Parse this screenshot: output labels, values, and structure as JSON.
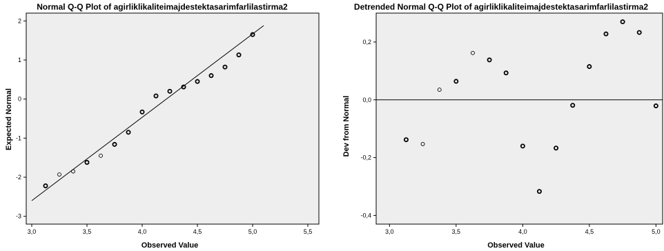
{
  "chart_data": [
    {
      "type": "scatter",
      "title": "Normal Q-Q Plot of agirliklikaliteimajdestektasarimfarlilastirma2",
      "xlabel": "Observed Value",
      "ylabel": "Expected Normal",
      "xlim": [
        2.95,
        5.6
      ],
      "ylim": [
        -3.2,
        2.2
      ],
      "xticks": [
        "3,0",
        "3,5",
        "4,0",
        "4,5",
        "5,0",
        "5,5"
      ],
      "xtick_values": [
        3.0,
        3.5,
        4.0,
        4.5,
        5.0,
        5.5
      ],
      "yticks": [
        "-3",
        "-2",
        "-1",
        "0",
        "1",
        "2"
      ],
      "ytick_values": [
        -3,
        -2,
        -1,
        0,
        1,
        2
      ],
      "reference_line": [
        [
          3.0,
          -2.6
        ],
        [
          5.1,
          1.88
        ]
      ],
      "points": [
        {
          "x": 3.125,
          "y": -2.22,
          "bold": true
        },
        {
          "x": 3.25,
          "y": -1.93,
          "bold": false
        },
        {
          "x": 3.375,
          "y": -1.85,
          "bold": false
        },
        {
          "x": 3.5,
          "y": -1.62,
          "bold": true
        },
        {
          "x": 3.625,
          "y": -1.45,
          "bold": false
        },
        {
          "x": 3.75,
          "y": -1.16,
          "bold": true
        },
        {
          "x": 3.875,
          "y": -0.85,
          "bold": true
        },
        {
          "x": 4.0,
          "y": -0.33,
          "bold": true
        },
        {
          "x": 4.125,
          "y": 0.08,
          "bold": true
        },
        {
          "x": 4.25,
          "y": 0.2,
          "bold": true
        },
        {
          "x": 4.375,
          "y": 0.31,
          "bold": true
        },
        {
          "x": 4.5,
          "y": 0.45,
          "bold": true
        },
        {
          "x": 4.625,
          "y": 0.6,
          "bold": true
        },
        {
          "x": 4.75,
          "y": 0.82,
          "bold": true
        },
        {
          "x": 4.875,
          "y": 1.13,
          "bold": true
        },
        {
          "x": 5.0,
          "y": 1.65,
          "bold": true
        }
      ],
      "grid": false
    },
    {
      "type": "scatter",
      "title": "Detrended Normal Q-Q Plot of agirliklikaliteimajdestektasarimfarlilastirma2",
      "xlabel": "Observed Value",
      "ylabel": "Dev from Normal",
      "xlim": [
        2.9,
        5.05
      ],
      "ylim": [
        -0.43,
        0.3
      ],
      "xticks": [
        "3,0",
        "3,5",
        "4,0",
        "4,5",
        "5,0"
      ],
      "xtick_values": [
        3.0,
        3.5,
        4.0,
        4.5,
        5.0
      ],
      "yticks": [
        "-0,4",
        "-0,2",
        "0,0",
        "0,2"
      ],
      "ytick_values": [
        -0.4,
        -0.2,
        0.0,
        0.2
      ],
      "reference_line_y": 0.0,
      "points": [
        {
          "x": 3.125,
          "y": -0.138,
          "bold": true
        },
        {
          "x": 3.25,
          "y": -0.153,
          "bold": false
        },
        {
          "x": 3.375,
          "y": 0.035,
          "bold": false
        },
        {
          "x": 3.5,
          "y": 0.064,
          "bold": true
        },
        {
          "x": 3.625,
          "y": 0.162,
          "bold": false
        },
        {
          "x": 3.75,
          "y": 0.138,
          "bold": true
        },
        {
          "x": 3.875,
          "y": 0.093,
          "bold": true
        },
        {
          "x": 4.0,
          "y": -0.16,
          "bold": true
        },
        {
          "x": 4.125,
          "y": -0.317,
          "bold": true
        },
        {
          "x": 4.25,
          "y": -0.167,
          "bold": true
        },
        {
          "x": 4.375,
          "y": -0.019,
          "bold": true
        },
        {
          "x": 4.5,
          "y": 0.115,
          "bold": true
        },
        {
          "x": 4.625,
          "y": 0.228,
          "bold": true
        },
        {
          "x": 4.75,
          "y": 0.27,
          "bold": true
        },
        {
          "x": 4.875,
          "y": 0.233,
          "bold": true
        },
        {
          "x": 5.0,
          "y": -0.021,
          "bold": true
        }
      ],
      "grid": false
    }
  ],
  "colors": {
    "plot_background": "#eeeeee",
    "frame": "#000000",
    "marker": "#000000"
  }
}
